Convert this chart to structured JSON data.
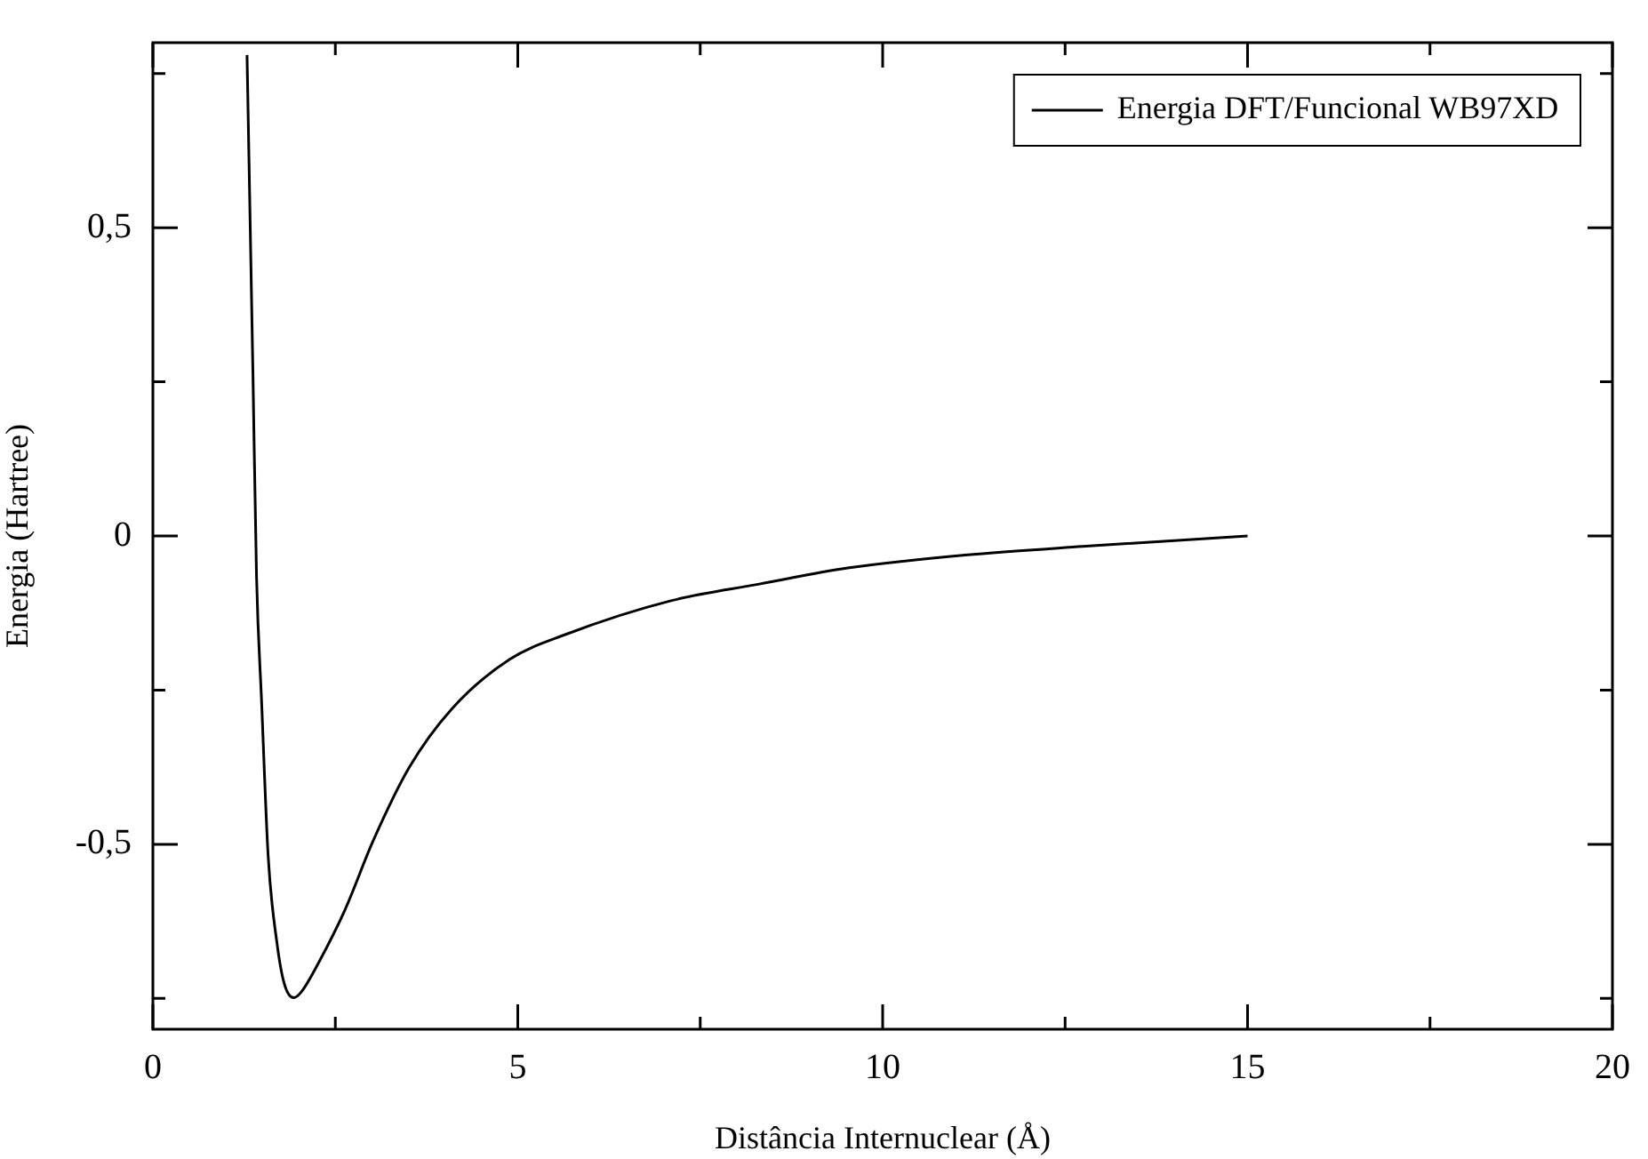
{
  "chart_data": {
    "type": "line",
    "xlabel": "Distância Internuclear (Å)",
    "ylabel": "Energia (Hartree)",
    "xlim": [
      0,
      20
    ],
    "ylim": [
      -0.8,
      0.8
    ],
    "xticks": [
      0,
      {
        "value": 2.5,
        "label": null
      },
      5,
      {
        "value": 7.5,
        "label": null
      },
      10,
      {
        "value": 12.5,
        "label": null
      },
      15,
      {
        "value": 17.5,
        "label": null
      },
      20
    ],
    "yticks": [
      {
        "value": -0.75,
        "label": null
      },
      {
        "value": -0.5,
        "label": "-0,5"
      },
      {
        "value": -0.25,
        "label": null
      },
      0,
      {
        "value": 0.25,
        "label": null
      },
      {
        "value": 0.5,
        "label": "0,5"
      },
      {
        "value": 0.75,
        "label": null
      }
    ],
    "grid": false,
    "legend": "top right",
    "marker": "none",
    "line_style": "solid",
    "series": [
      {
        "name": "Energia DFT/Funcional WB97XD",
        "color": "#000000",
        "x": [
          1.29,
          1.37,
          1.42,
          1.49,
          1.58,
          1.7,
          1.8,
          1.93,
          2.03,
          2.28,
          2.63,
          3.02,
          3.51,
          4.1,
          4.89,
          5.65,
          7.1,
          8.31,
          9.52,
          11.13,
          12.74,
          15
        ],
        "values": [
          0.78,
          0.27,
          -0.065,
          -0.27,
          -0.52,
          -0.66,
          -0.726,
          -0.749,
          -0.74,
          -0.69,
          -0.607,
          -0.494,
          -0.376,
          -0.28,
          -0.2,
          -0.16,
          -0.105,
          -0.078,
          -0.052,
          -0.031,
          -0.017,
          0
        ]
      }
    ]
  }
}
